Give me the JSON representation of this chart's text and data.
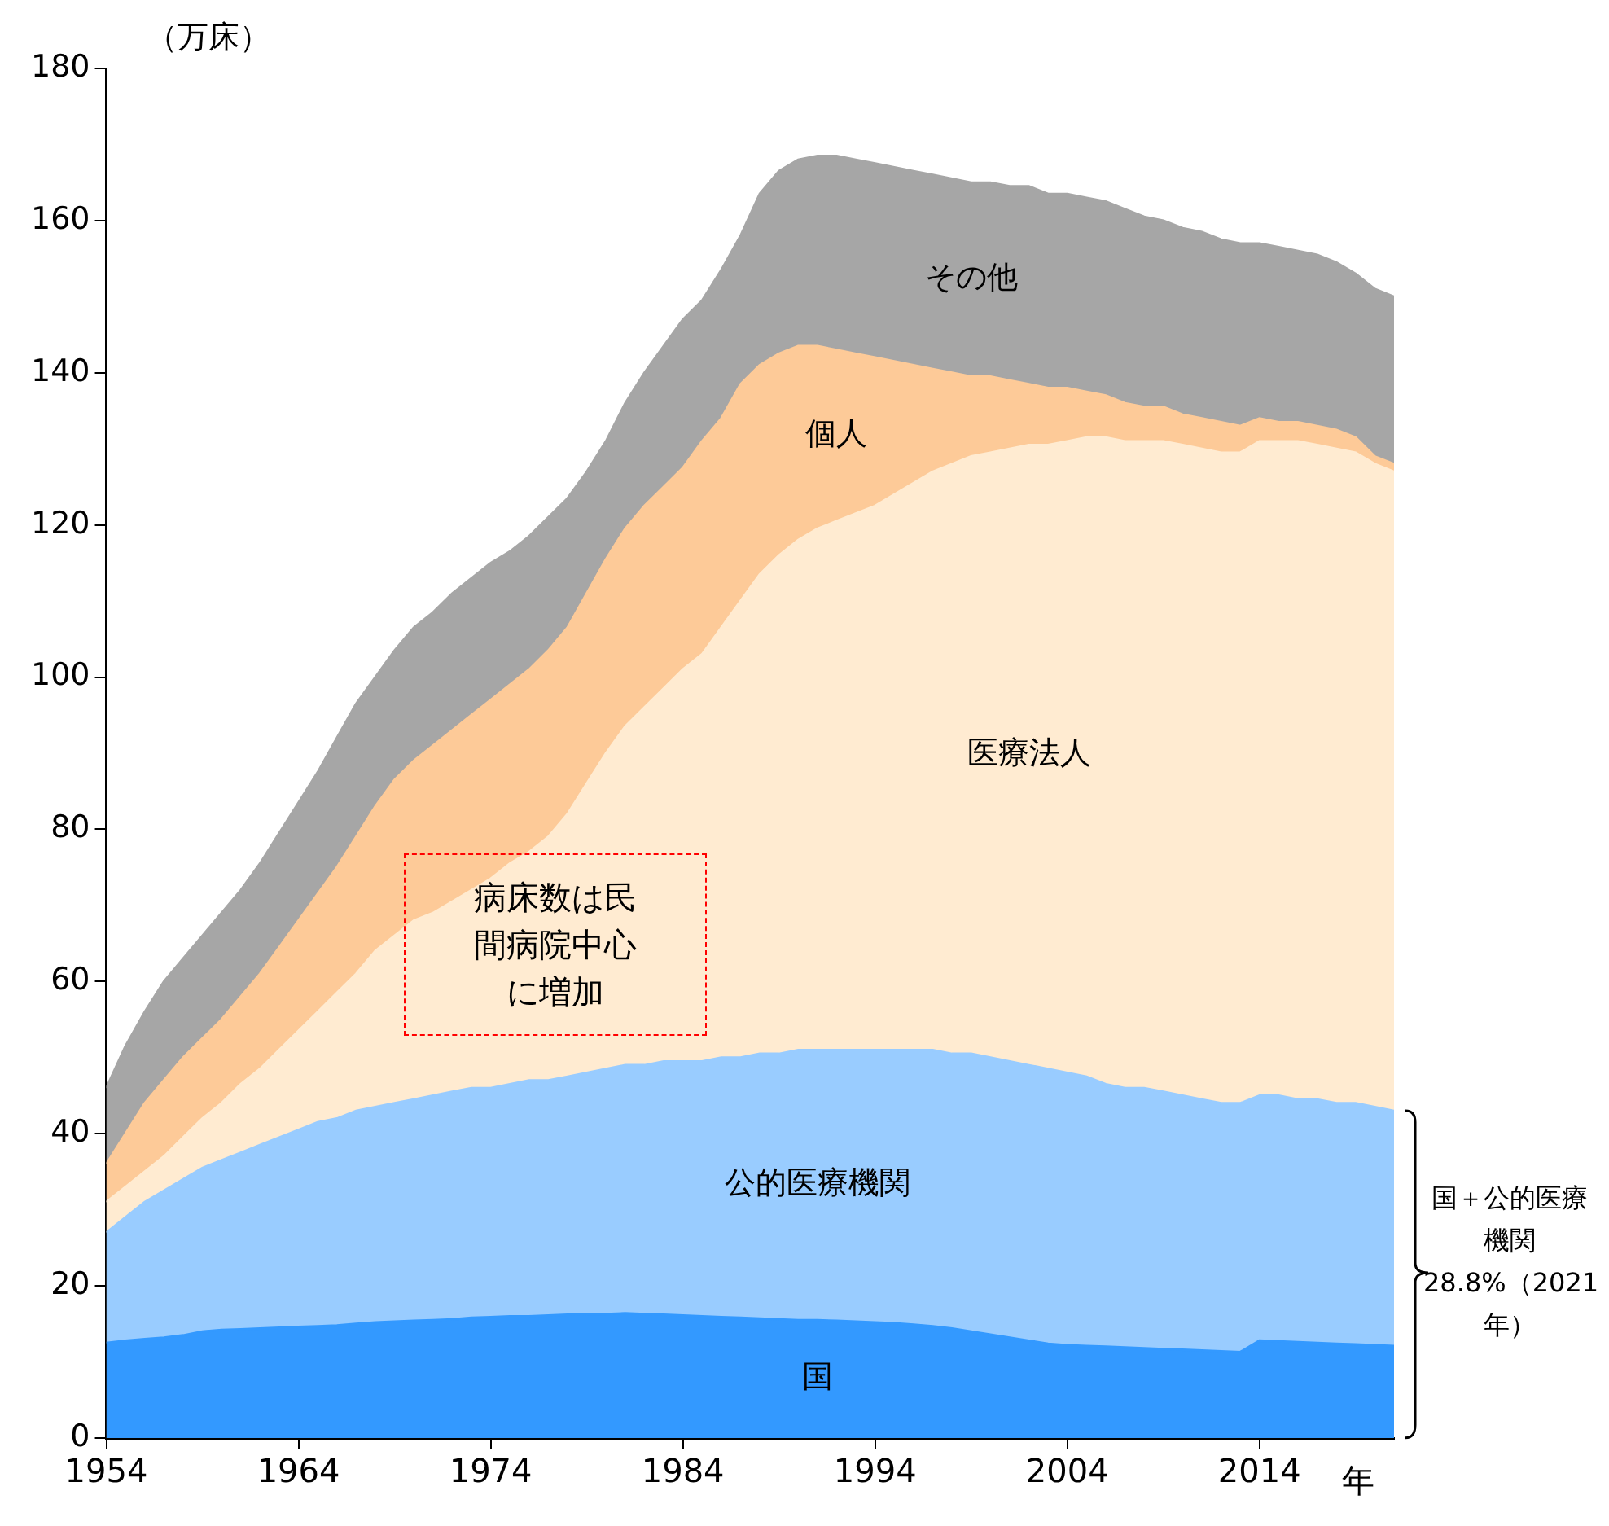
{
  "chart_data": {
    "type": "area",
    "stacked": true,
    "ylabel": "（万床）",
    "xlabel": "年",
    "legend": false,
    "grid": false,
    "x": [
      1954,
      1955,
      1956,
      1957,
      1958,
      1959,
      1960,
      1961,
      1962,
      1963,
      1964,
      1965,
      1966,
      1967,
      1968,
      1969,
      1970,
      1971,
      1972,
      1973,
      1974,
      1975,
      1976,
      1977,
      1978,
      1979,
      1980,
      1981,
      1982,
      1983,
      1984,
      1985,
      1986,
      1987,
      1988,
      1989,
      1990,
      1991,
      1992,
      1993,
      1994,
      1995,
      1996,
      1997,
      1998,
      1999,
      2000,
      2001,
      2002,
      2003,
      2004,
      2005,
      2006,
      2007,
      2008,
      2009,
      2010,
      2011,
      2012,
      2013,
      2014,
      2015,
      2016,
      2017,
      2018,
      2019,
      2020,
      2021
    ],
    "xlim": [
      1954,
      2021
    ],
    "xticks": [
      1954,
      1964,
      1974,
      1984,
      1994,
      2004,
      2014
    ],
    "ylim": [
      0,
      180
    ],
    "yticks": [
      0,
      20,
      40,
      60,
      80,
      100,
      120,
      140,
      160,
      180
    ],
    "series": [
      {
        "name": "国",
        "color": "#3399ff",
        "values": [
          12.5,
          12.8,
          13,
          13.2,
          13.5,
          14,
          14.2,
          14.3,
          14.4,
          14.5,
          14.6,
          14.7,
          14.8,
          15,
          15.2,
          15.3,
          15.4,
          15.5,
          15.6,
          15.8,
          15.9,
          16,
          16,
          16.1,
          16.2,
          16.3,
          16.3,
          16.4,
          16.3,
          16.2,
          16.1,
          16,
          15.9,
          15.8,
          15.7,
          15.6,
          15.5,
          15.5,
          15.4,
          15.3,
          15.2,
          15.1,
          14.9,
          14.7,
          14.4,
          14,
          13.6,
          13.2,
          12.8,
          12.4,
          12.2,
          12.1,
          12,
          11.9,
          11.8,
          11.7,
          11.6,
          11.5,
          11.4,
          11.3,
          12.8,
          12.7,
          12.6,
          12.5,
          12.4,
          12.3,
          12.2,
          12.1
        ]
      },
      {
        "name": "公的医療機関",
        "color": "#99ccff",
        "values": [
          14.5,
          16.2,
          18,
          19.3,
          20.5,
          21.5,
          22.3,
          23.2,
          24.1,
          25,
          25.9,
          26.8,
          27.2,
          28,
          28.3,
          28.7,
          29.1,
          29.5,
          29.9,
          30.2,
          30.1,
          30.5,
          31,
          30.9,
          31.3,
          31.7,
          32.2,
          32.6,
          32.7,
          33.3,
          33.4,
          33.5,
          34.1,
          34.2,
          34.8,
          34.9,
          35.5,
          35.5,
          35.6,
          35.7,
          35.8,
          35.9,
          36.1,
          36.3,
          36.1,
          36.5,
          36.4,
          36.3,
          36.2,
          36.1,
          35.8,
          35.4,
          34.5,
          34.1,
          34.2,
          33.8,
          33.4,
          33,
          32.6,
          32.7,
          32.2,
          32.3,
          31.9,
          32,
          31.6,
          31.7,
          31.3,
          30.9
        ]
      },
      {
        "name": "医療法人",
        "color": "#ffebd1",
        "values": [
          4,
          4,
          4,
          4.5,
          5.5,
          6.5,
          7.5,
          9,
          10,
          11.5,
          13,
          14.5,
          16.5,
          18,
          20.5,
          22,
          23.5,
          24,
          25,
          26,
          27.5,
          29,
          30,
          32,
          34.5,
          38,
          41.5,
          44.5,
          47,
          49,
          51.5,
          53.5,
          56.5,
          60,
          63,
          65.5,
          67,
          68.5,
          69.5,
          70.5,
          71.5,
          73,
          74.5,
          76,
          77.5,
          78.5,
          79.5,
          80.5,
          81.5,
          82,
          83,
          84,
          85,
          85,
          85,
          85.5,
          85.5,
          85.5,
          85.5,
          85.5,
          86,
          86,
          86.5,
          86,
          86,
          85.5,
          84.5,
          84
        ]
      },
      {
        "name": "個人",
        "color": "#fdca98",
        "values": [
          5,
          7,
          9,
          10,
          10.5,
          10.5,
          11,
          11.5,
          12.5,
          13.5,
          14.5,
          15.5,
          16.5,
          18,
          19,
          20.5,
          21,
          22,
          22.5,
          23,
          23.5,
          23.5,
          24,
          24.5,
          24.5,
          25,
          25.5,
          26,
          26.5,
          26.5,
          26.5,
          28,
          27.5,
          28.5,
          27.5,
          26.5,
          25.5,
          24,
          22.5,
          21,
          19.5,
          17.5,
          15.5,
          13.5,
          12,
          10.5,
          10,
          9,
          8,
          7.5,
          7,
          6,
          5.5,
          5,
          4.5,
          4.5,
          4,
          4,
          4,
          3.5,
          3,
          2.5,
          2.5,
          2.5,
          2.5,
          2,
          1,
          1
        ]
      },
      {
        "name": "その他",
        "color": "#a6a6a6",
        "values": [
          10,
          11.5,
          12,
          13,
          13,
          13.5,
          14,
          14,
          14.5,
          15,
          15.5,
          16,
          17,
          17.5,
          17,
          17,
          17.5,
          17.5,
          18,
          18,
          18,
          17.5,
          17.5,
          17.5,
          17,
          16,
          15.5,
          16.5,
          17.5,
          18.5,
          19.5,
          18.5,
          19.5,
          19.5,
          22.5,
          24,
          24.5,
          25,
          25.5,
          25.5,
          25.5,
          25.5,
          25.5,
          25.5,
          25.5,
          25.5,
          25.5,
          25.5,
          26,
          25.5,
          25.5,
          25.5,
          25.5,
          25.5,
          25,
          24.5,
          24.5,
          24.5,
          24,
          24,
          23,
          23,
          22.5,
          22.5,
          22,
          21.5,
          22,
          22
        ]
      }
    ],
    "annotations": [
      "病床数は民間病院中心に増加",
      "国＋公的医療機関28.8%（2021年）"
    ]
  }
}
